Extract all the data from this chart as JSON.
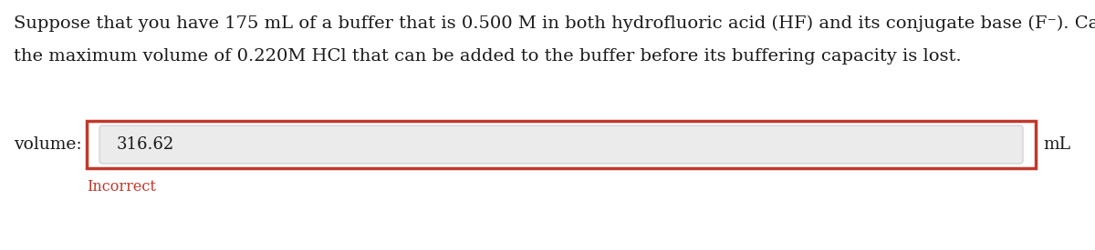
{
  "question_line1": "Suppose that you have 175 mL of a buffer that is 0.500 M in both hydrofluoric acid (HF) and its conjugate base (F⁻). Calculate",
  "question_line2": "the maximum volume of 0.220M HCl that can be added to the buffer before its buffering capacity is lost.",
  "label_left": "volume:",
  "answer_value": "316.62",
  "label_right": "mL",
  "feedback": "Incorrect",
  "bg_color": "#ffffff",
  "text_color": "#1a1a1a",
  "feedback_color": "#c0392b",
  "outer_box_edge": "#c0392b",
  "inner_box_face": "#ebebeb",
  "inner_box_edge": "#cccccc",
  "font_size_question": 14.0,
  "font_size_answer": 13.0,
  "font_size_label": 13.5,
  "font_size_feedback": 11.5
}
